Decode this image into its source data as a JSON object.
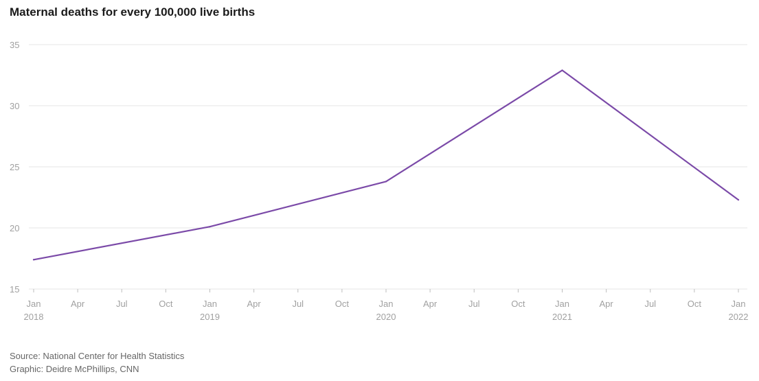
{
  "title": "Maternal deaths for every 100,000 live births",
  "source_line": "Source: National Center for Health Statistics",
  "credit_line": "Graphic: Deidre McPhillips, CNN",
  "line_color": "#7b4aa8",
  "chart_data": {
    "type": "line",
    "title": "Maternal deaths for every 100,000 live births",
    "xlabel": "",
    "ylabel": "",
    "ylim": [
      15,
      35
    ],
    "yticks": [
      15,
      20,
      25,
      30,
      35
    ],
    "xlim": [
      "2018-01",
      "2022-01"
    ],
    "xticks": [
      {
        "date": "2018-01",
        "month": "Jan",
        "year": "2018"
      },
      {
        "date": "2018-04",
        "month": "Apr",
        "year": ""
      },
      {
        "date": "2018-07",
        "month": "Jul",
        "year": ""
      },
      {
        "date": "2018-10",
        "month": "Oct",
        "year": ""
      },
      {
        "date": "2019-01",
        "month": "Jan",
        "year": "2019"
      },
      {
        "date": "2019-04",
        "month": "Apr",
        "year": ""
      },
      {
        "date": "2019-07",
        "month": "Jul",
        "year": ""
      },
      {
        "date": "2019-10",
        "month": "Oct",
        "year": ""
      },
      {
        "date": "2020-01",
        "month": "Jan",
        "year": "2020"
      },
      {
        "date": "2020-04",
        "month": "Apr",
        "year": ""
      },
      {
        "date": "2020-07",
        "month": "Jul",
        "year": ""
      },
      {
        "date": "2020-10",
        "month": "Oct",
        "year": ""
      },
      {
        "date": "2021-01",
        "month": "Jan",
        "year": "2021"
      },
      {
        "date": "2021-04",
        "month": "Apr",
        "year": ""
      },
      {
        "date": "2021-07",
        "month": "Jul",
        "year": ""
      },
      {
        "date": "2021-10",
        "month": "Oct",
        "year": ""
      },
      {
        "date": "2022-01",
        "month": "Jan",
        "year": "2022"
      }
    ],
    "grid": true,
    "series": [
      {
        "x": [
          "2018-01",
          "2019-01",
          "2020-01",
          "2021-01",
          "2022-01"
        ],
        "values": [
          17.4,
          20.1,
          23.8,
          32.9,
          22.3
        ]
      }
    ]
  }
}
